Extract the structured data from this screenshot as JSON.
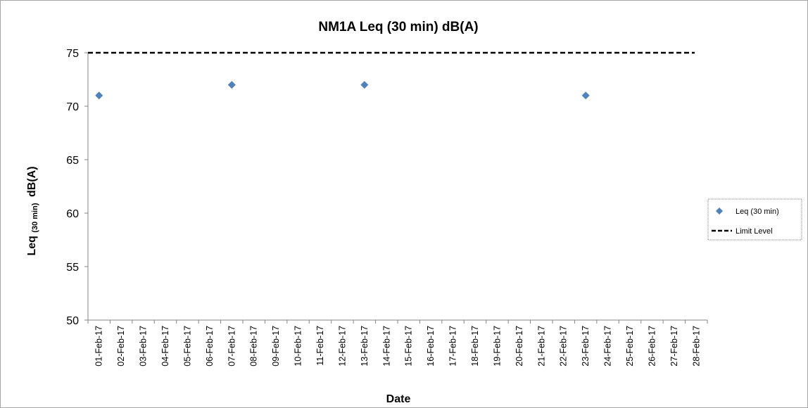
{
  "chart_data": {
    "type": "scatter",
    "title": "NM1A Leq (30 min) dB(A)",
    "xlabel": "Date",
    "ylabel": {
      "main": "Leq",
      "subscript": "(30 min)",
      "suffix": "dB(A)"
    },
    "ylim": [
      50,
      75
    ],
    "yticks": [
      50,
      55,
      60,
      65,
      70,
      75
    ],
    "categories": [
      "01-Feb-17",
      "02-Feb-17",
      "03-Feb-17",
      "04-Feb-17",
      "05-Feb-17",
      "06-Feb-17",
      "07-Feb-17",
      "08-Feb-17",
      "09-Feb-17",
      "10-Feb-17",
      "11-Feb-17",
      "12-Feb-17",
      "13-Feb-17",
      "14-Feb-17",
      "15-Feb-17",
      "16-Feb-17",
      "17-Feb-17",
      "18-Feb-17",
      "19-Feb-17",
      "20-Feb-17",
      "21-Feb-17",
      "22-Feb-17",
      "23-Feb-17",
      "24-Feb-17",
      "25-Feb-17",
      "26-Feb-17",
      "27-Feb-17",
      "28-Feb-17"
    ],
    "series": [
      {
        "name": "Leq (30 min)",
        "marker": "diamond",
        "color": "#4f81bd",
        "points": [
          {
            "x": "01-Feb-17",
            "y": 71
          },
          {
            "x": "07-Feb-17",
            "y": 72
          },
          {
            "x": "13-Feb-17",
            "y": 72
          },
          {
            "x": "23-Feb-17",
            "y": 71
          }
        ]
      },
      {
        "name": "Limit Level",
        "style": "dashed",
        "color": "#000000",
        "value": 75
      }
    ],
    "grid": false,
    "legend_position": "right"
  }
}
